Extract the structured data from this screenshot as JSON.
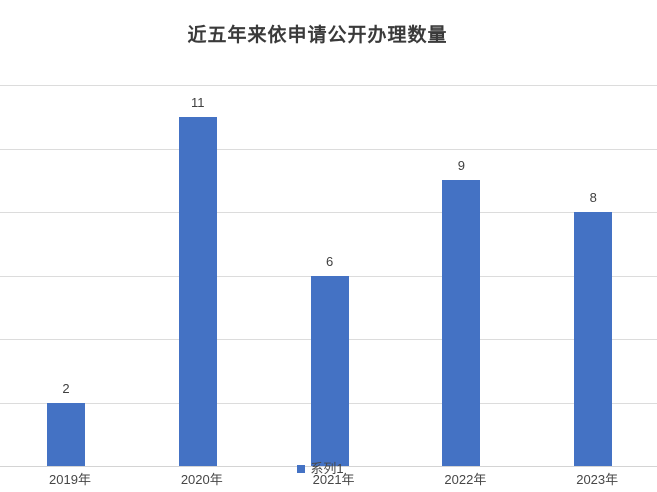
{
  "chart_data": {
    "type": "bar",
    "title": "近五年来依申请公开办理数量",
    "categories": [
      "2019年",
      "2020年",
      "2021年",
      "2022年",
      "2023年"
    ],
    "series": [
      {
        "name": "系列1",
        "values": [
          2,
          11,
          6,
          9,
          8
        ]
      }
    ],
    "data_labels": [
      "2",
      "11",
      "6",
      "9",
      "8"
    ],
    "xlabel": "",
    "ylabel": "",
    "ylim": [
      0,
      12
    ],
    "grid_step": 2,
    "grid": "on",
    "y_tick_labels_visible": false,
    "legend_position": "bottom-center",
    "colors": {
      "bar": "#4472C4",
      "gridline": "#DCDCDC",
      "axis_line": "#D4D4D4",
      "title": "#3A3A3A",
      "data_label": "#404040",
      "axis_label": "#474747",
      "background": "#FFFFFF"
    }
  }
}
